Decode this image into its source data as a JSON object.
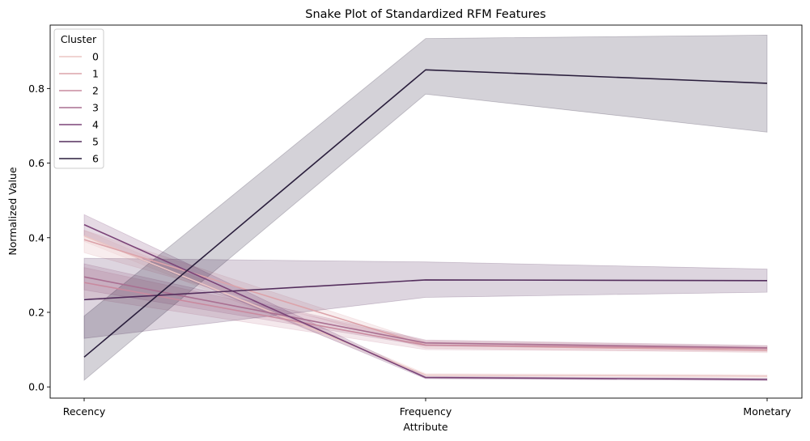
{
  "chart_data": {
    "type": "line",
    "title": "Snake Plot of Standardized RFM Features",
    "xlabel": "Attribute",
    "ylabel": "Normalized Value",
    "categories": [
      "Recency",
      "Frequency",
      "Monetary"
    ],
    "ylim": [
      -0.03,
      0.97
    ],
    "yticks": [
      0.0,
      0.2,
      0.4,
      0.6,
      0.8
    ],
    "ytick_labels": [
      "0.0",
      "0.2",
      "0.4",
      "0.6",
      "0.8"
    ],
    "grid": false,
    "legend": {
      "title": "Cluster",
      "placement": "top-left"
    },
    "series": [
      {
        "name": "0",
        "color": "#ebc5c4",
        "values": [
          0.405,
          0.032,
          0.029
        ],
        "ci_low": [
          0.39,
          0.028,
          0.025
        ],
        "ci_high": [
          0.42,
          0.036,
          0.033
        ]
      },
      {
        "name": "1",
        "color": "#dca3aa",
        "values": [
          0.395,
          0.112,
          0.098
        ],
        "ci_low": [
          0.36,
          0.104,
          0.092
        ],
        "ci_high": [
          0.42,
          0.12,
          0.105
        ]
      },
      {
        "name": "2",
        "color": "#c98a9f",
        "values": [
          0.28,
          0.112,
          0.103
        ],
        "ci_low": [
          0.24,
          0.1,
          0.095
        ],
        "ci_high": [
          0.32,
          0.124,
          0.11
        ]
      },
      {
        "name": "3",
        "color": "#a96f91",
        "values": [
          0.295,
          0.118,
          0.105
        ],
        "ci_low": [
          0.26,
          0.11,
          0.099
        ],
        "ci_high": [
          0.33,
          0.126,
          0.111
        ]
      },
      {
        "name": "4",
        "color": "#7b4478",
        "values": [
          0.435,
          0.025,
          0.02
        ],
        "ci_low": [
          0.405,
          0.022,
          0.017
        ],
        "ci_high": [
          0.462,
          0.028,
          0.023
        ]
      },
      {
        "name": "5",
        "color": "#542e5d",
        "values": [
          0.234,
          0.287,
          0.285
        ],
        "ci_low": [
          0.13,
          0.24,
          0.254
        ],
        "ci_high": [
          0.345,
          0.335,
          0.316
        ]
      },
      {
        "name": "6",
        "color": "#2a1e3c",
        "values": [
          0.08,
          0.85,
          0.814
        ],
        "ci_low": [
          0.018,
          0.785,
          0.683
        ],
        "ci_high": [
          0.19,
          0.934,
          0.943
        ]
      }
    ]
  }
}
